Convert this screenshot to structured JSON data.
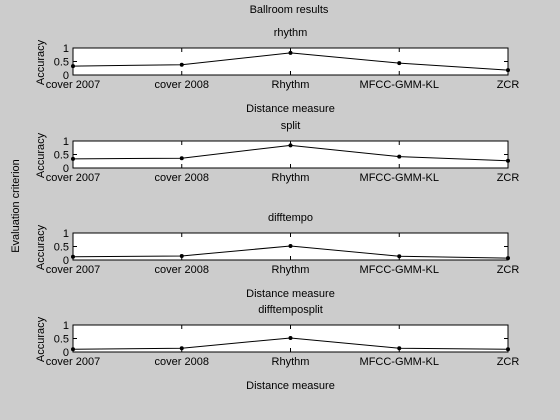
{
  "figure": {
    "title": "Ballroom results",
    "side_label": "Evaluation criterion",
    "background": "#cccccc",
    "axes_background": "#ffffff",
    "line_color": "#000000"
  },
  "chart_data": [
    {
      "type": "line",
      "title": "rhythm",
      "xlabel": "Distance measure",
      "ylabel": "Accuracy",
      "categories": [
        "cover 2007",
        "cover 2008",
        "Rhythm",
        "MFCC-GMM-KL",
        "ZCR"
      ],
      "values": [
        0.33,
        0.38,
        0.82,
        0.44,
        0.18
      ],
      "ylim": [
        0,
        1
      ],
      "yticks": [
        "0",
        "0.5",
        "1"
      ],
      "grid": false
    },
    {
      "type": "line",
      "title": "split",
      "xlabel": "",
      "ylabel": "Accuracy",
      "categories": [
        "cover 2007",
        "cover 2008",
        "Rhythm",
        "MFCC-GMM-KL",
        "ZCR"
      ],
      "values": [
        0.34,
        0.36,
        0.84,
        0.42,
        0.27
      ],
      "ylim": [
        0,
        1
      ],
      "yticks": [
        "0",
        "0.5",
        "1"
      ],
      "grid": false
    },
    {
      "type": "line",
      "title": "difftempo",
      "xlabel": "Distance measure",
      "ylabel": "Accuracy",
      "categories": [
        "cover 2007",
        "cover 2008",
        "Rhythm",
        "MFCC-GMM-KL",
        "ZCR"
      ],
      "values": [
        0.12,
        0.15,
        0.52,
        0.14,
        0.07
      ],
      "ylim": [
        0,
        1
      ],
      "yticks": [
        "0",
        "0.5",
        "1"
      ],
      "grid": false
    },
    {
      "type": "line",
      "title": "difftemposplit",
      "xlabel": "Distance measure",
      "ylabel": "Accuracy",
      "categories": [
        "cover 2007",
        "cover 2008",
        "Rhythm",
        "MFCC-GMM-KL",
        "ZCR"
      ],
      "values": [
        0.1,
        0.14,
        0.52,
        0.14,
        0.1
      ],
      "ylim": [
        0,
        1
      ],
      "yticks": [
        "0",
        "0.5",
        "1"
      ],
      "grid": false
    }
  ]
}
